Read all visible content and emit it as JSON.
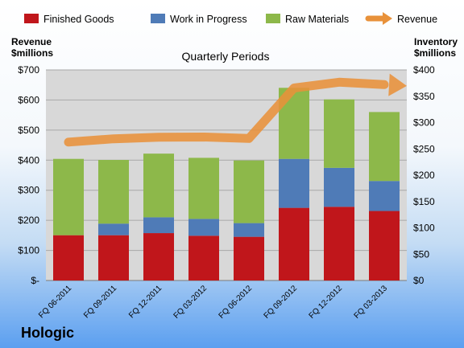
{
  "brand": "Hologic",
  "chart_data": {
    "type": "bar",
    "stacked": true,
    "title": "Quarterly Periods",
    "categories": [
      "FQ 06-2011",
      "FQ 09-2011",
      "FQ 12-2011",
      "FQ 03-2012",
      "FQ 06-2012",
      "FQ 09-2012",
      "FQ 12-2012",
      "FQ 03-2013"
    ],
    "legend_position": "top",
    "y_left": {
      "label_line1": "Revenue",
      "label_line2": "$millions",
      "range": [
        0,
        700
      ],
      "ticks": [
        "$-",
        "$100",
        "$200",
        "$300",
        "$400",
        "$500",
        "$600",
        "$700"
      ]
    },
    "y_right": {
      "label_line1": "Inventory",
      "label_line2": "$millions",
      "range": [
        0,
        400
      ],
      "ticks": [
        "$0",
        "$50",
        "$100",
        "$150",
        "$200",
        "$250",
        "$300",
        "$350",
        "$400"
      ]
    },
    "series": [
      {
        "name": "Finished Goods",
        "axis": "right",
        "color": "#c0161b",
        "values": [
          86,
          86,
          90,
          85,
          83,
          138,
          140,
          132
        ]
      },
      {
        "name": "Work in Progress",
        "axis": "right",
        "color": "#4f7bb7",
        "values": [
          0,
          22,
          30,
          32,
          26,
          93,
          74,
          57
        ]
      },
      {
        "name": "Raw Materials",
        "axis": "right",
        "color": "#8db84a",
        "values": [
          145,
          121,
          121,
          116,
          119,
          135,
          130,
          131
        ]
      },
      {
        "name": "Revenue",
        "axis": "left",
        "type": "line",
        "color": "#e8913a",
        "values": [
          460,
          471,
          476,
          477,
          472,
          640,
          659,
          651
        ]
      }
    ],
    "grid": true,
    "plot_background": "#d8d8d8"
  }
}
